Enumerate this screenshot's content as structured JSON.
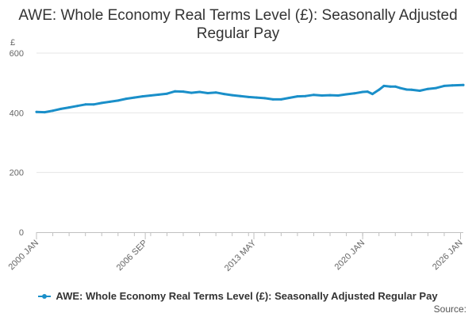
{
  "chart_data": {
    "type": "line",
    "title": "AWE: Whole Economy Real Terms Level (£): Seasonally Adjusted Regular Pay",
    "xlabel": "",
    "ylabel": "£",
    "ylim": [
      0,
      600
    ],
    "y_ticks": [
      "0",
      "200",
      "400",
      "600"
    ],
    "x_ticks": [
      "2000 JAN",
      "2006 SEP",
      "2013 MAY",
      "2020 JAN",
      "2026 JAN"
    ],
    "xlim": [
      2000.0,
      2026.17
    ],
    "grid": true,
    "legend_position": "bottom",
    "series": [
      {
        "name": "AWE: Whole Economy Real Terms Level (£): Seasonally Adjusted Regular Pay",
        "color": "#1a8fc9",
        "x": [
          2000.0,
          2000.5,
          2001.0,
          2001.5,
          2002.0,
          2002.5,
          2003.0,
          2003.5,
          2004.0,
          2004.5,
          2005.0,
          2005.5,
          2006.0,
          2006.5,
          2007.0,
          2007.5,
          2008.0,
          2008.5,
          2009.0,
          2009.5,
          2010.0,
          2010.5,
          2011.0,
          2011.5,
          2012.0,
          2012.5,
          2013.0,
          2013.5,
          2014.0,
          2014.5,
          2015.0,
          2015.5,
          2016.0,
          2016.5,
          2017.0,
          2017.5,
          2018.0,
          2018.5,
          2019.0,
          2019.5,
          2020.0,
          2020.3,
          2020.6,
          2021.0,
          2021.3,
          2021.7,
          2022.0,
          2022.3,
          2022.7,
          2023.0,
          2023.5,
          2024.0,
          2024.5,
          2025.0,
          2025.5,
          2026.17
        ],
        "y": [
          403,
          402,
          407,
          413,
          418,
          423,
          428,
          428,
          433,
          437,
          441,
          447,
          451,
          455,
          458,
          461,
          464,
          472,
          471,
          467,
          470,
          466,
          468,
          463,
          459,
          456,
          453,
          451,
          449,
          445,
          445,
          450,
          455,
          456,
          460,
          458,
          459,
          458,
          462,
          465,
          470,
          471,
          463,
          477,
          490,
          488,
          488,
          483,
          478,
          477,
          474,
          480,
          483,
          490,
          492,
          493
        ]
      }
    ]
  },
  "source_label": "Source:"
}
